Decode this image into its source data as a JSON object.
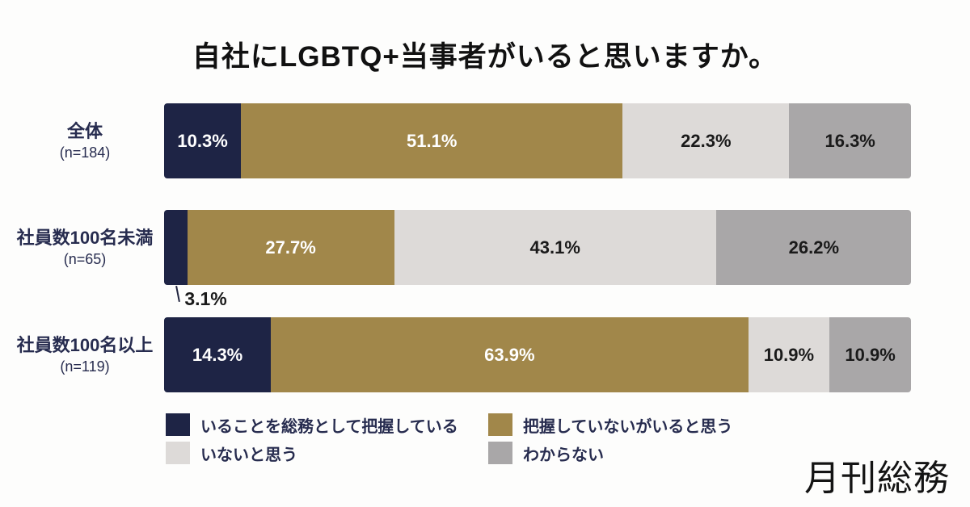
{
  "title": "自社にLGBTQ+当事者がいると思いますか。",
  "logo": {
    "text": "月刊総務"
  },
  "colors": {
    "background": "#fdfdfc",
    "navy": "#1e2445",
    "gold": "#a1874a",
    "light_gray": "#dddad8",
    "mid_gray": "#a9a7a8",
    "label_navy": "#272c4f",
    "value_dark": "#1a1a1a",
    "value_light": "#ffffff"
  },
  "chart_data": {
    "type": "bar",
    "orientation": "horizontal",
    "stacked": true,
    "unit": "%",
    "title": "自社にLGBTQ+当事者がいると思いますか。",
    "xlim": [
      0,
      100
    ],
    "grid": false,
    "legend_position": "bottom-left",
    "categories": [
      {
        "label": "全体",
        "n_label": "(n=184)"
      },
      {
        "label": "社員数100名未満",
        "n_label": "(n=65)"
      },
      {
        "label": "社員数100名以上",
        "n_label": "(n=119)"
      }
    ],
    "series": [
      {
        "name": "いることを総務として把握している",
        "color": "#1e2445",
        "value_text_color": "#ffffff",
        "values": [
          10.3,
          3.1,
          14.3
        ]
      },
      {
        "name": "把握していないがいると思う",
        "color": "#a1874a",
        "value_text_color": "#ffffff",
        "values": [
          51.1,
          27.7,
          63.9
        ]
      },
      {
        "name": "いないと思う",
        "color": "#dddad8",
        "value_text_color": "#1a1a1a",
        "values": [
          22.3,
          43.1,
          10.9
        ]
      },
      {
        "name": "わからない",
        "color": "#a9a7a8",
        "value_text_color": "#1a1a1a",
        "values": [
          16.3,
          26.2,
          10.9
        ]
      }
    ]
  }
}
